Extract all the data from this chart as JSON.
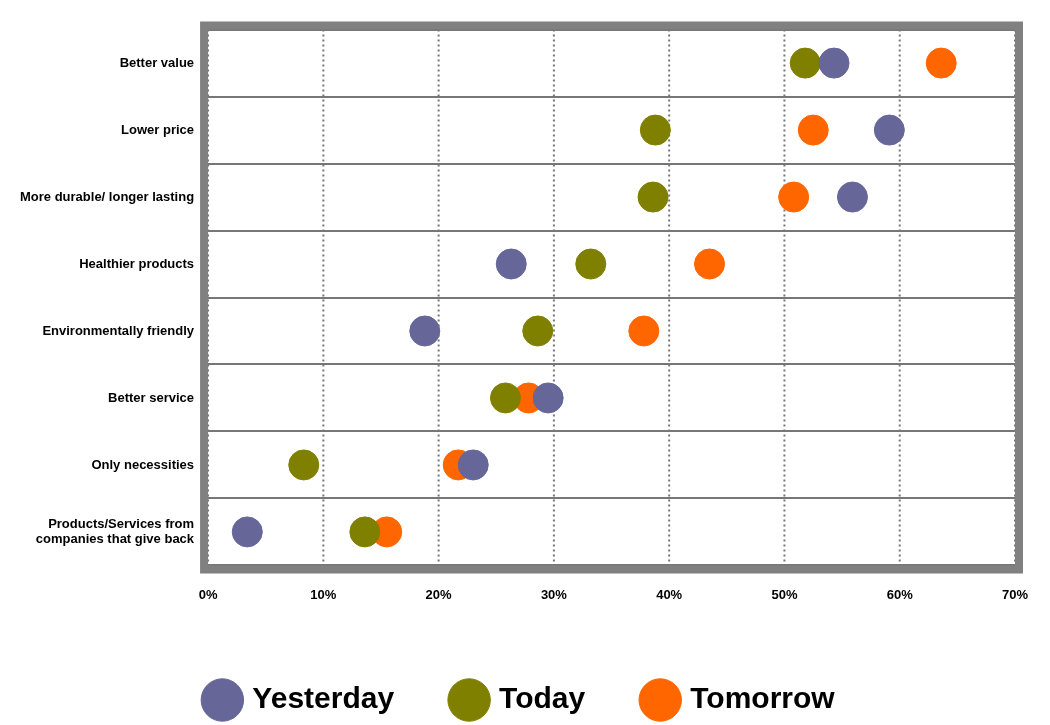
{
  "chart_data": {
    "type": "scatter",
    "orientation": "horizontal",
    "categories": [
      "Better value",
      "Lower price",
      "More durable/ longer lasting",
      "Healthier products",
      "Environmentally friendly",
      "Better service",
      "Only necessities",
      "Products/Services from companies that give back"
    ],
    "series": [
      {
        "name": "Yesterday",
        "color": "#666699",
        "values": [
          54.3,
          59.1,
          55.9,
          26.3,
          18.8,
          29.5,
          23.0,
          3.4
        ]
      },
      {
        "name": "Today",
        "color": "#808000",
        "values": [
          51.8,
          38.8,
          38.6,
          33.2,
          28.6,
          25.8,
          8.3,
          13.6
        ]
      },
      {
        "name": "Tomorrow",
        "color": "#ff6600",
        "values": [
          63.6,
          52.5,
          50.8,
          43.5,
          37.8,
          27.8,
          21.7,
          15.5
        ]
      }
    ],
    "xlim": [
      0,
      70
    ],
    "xticks": [
      {
        "value": 0,
        "label": "0%"
      },
      {
        "value": 10,
        "label": "10%"
      },
      {
        "value": 20,
        "label": "20%"
      },
      {
        "value": 30,
        "label": "30%"
      },
      {
        "value": 40,
        "label": "40%"
      },
      {
        "value": 50,
        "label": "50%"
      },
      {
        "value": 60,
        "label": "60%"
      },
      {
        "value": 70,
        "label": "70%"
      }
    ],
    "grid": true,
    "line_style": "dotted",
    "marker": "circle",
    "legend": "bottom"
  }
}
